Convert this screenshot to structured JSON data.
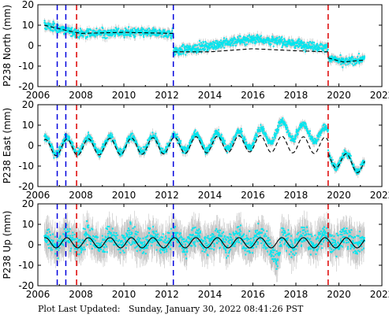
{
  "footer": {
    "label": "Plot Last Updated:",
    "timestamp": "Sunday, January 30, 2022 08:41:26 PST"
  },
  "colors": {
    "data": "#00e5ee",
    "error_bars": "#b4b4b4",
    "model_top": "#000000",
    "model_bottom": "#000000",
    "blue_lines": "#0000dd",
    "red_lines": "#dd0000",
    "axes": "#000000"
  },
  "chart_data": [
    {
      "type": "scatter",
      "ylabel": "P238 North (mm)",
      "xlim": [
        2006,
        2022
      ],
      "ylim": [
        -20,
        20
      ],
      "xticks": [
        2006,
        2008,
        2010,
        2012,
        2014,
        2016,
        2018,
        2020,
        2022
      ],
      "yticks": [
        -20,
        -10,
        0,
        10,
        20
      ],
      "vlines_blue": [
        2006.9,
        2007.3,
        2012.3
      ],
      "vlines_red": [
        2007.8,
        2019.5
      ],
      "data_range": [
        2006.3,
        2021.2
      ],
      "segments": [
        {
          "from": 2006.3,
          "to": 2012.3,
          "trend": [
            [
              2006.3,
              10
            ],
            [
              2007.3,
              7.5
            ],
            [
              2008,
              6
            ],
            [
              2010,
              6.5
            ],
            [
              2012.2,
              6
            ]
          ],
          "scatter": 2.2,
          "error": 1.5,
          "model_dashed": true
        },
        {
          "from": 2012.3,
          "to": 2019.5,
          "trend": [
            [
              2012.3,
              -3
            ],
            [
              2014,
              -3
            ],
            [
              2016,
              -1.5
            ],
            [
              2018,
              -2.5
            ],
            [
              2019.4,
              -3
            ]
          ],
          "data_trend": [
            [
              2012.3,
              -3
            ],
            [
              2014,
              0
            ],
            [
              2016,
              3.5
            ],
            [
              2018,
              1
            ],
            [
              2019.4,
              -1
            ]
          ],
          "scatter": 2.2,
          "error": 1.5,
          "model_dashed": true
        },
        {
          "from": 2019.5,
          "to": 2021.2,
          "trend": [
            [
              2019.5,
              -6
            ],
            [
              2020.2,
              -8
            ],
            [
              2021.2,
              -7
            ]
          ],
          "data_trend": [
            [
              2019.5,
              -6
            ],
            [
              2020.2,
              -8
            ],
            [
              2021.2,
              -6.5
            ]
          ],
          "scatter": 2.0,
          "error": 1.5,
          "model_dashed": true
        }
      ]
    },
    {
      "type": "scatter",
      "ylabel": "P238 East (mm)",
      "xlim": [
        2006,
        2022
      ],
      "ylim": [
        -20,
        20
      ],
      "xticks": [
        2006,
        2008,
        2010,
        2012,
        2014,
        2016,
        2018,
        2020,
        2022
      ],
      "yticks": [
        -20,
        -10,
        0,
        10,
        20
      ],
      "vlines_blue": [
        2006.9,
        2007.3,
        2012.3
      ],
      "vlines_red": [
        2007.8,
        2019.5
      ],
      "data_range": [
        2006.3,
        2021.2
      ],
      "seasonal_amplitude": 4,
      "segments": [
        {
          "from": 2006.3,
          "to": 2019.5,
          "trend": [
            [
              2006.3,
              -1
            ],
            [
              2012,
              0
            ],
            [
              2016,
              1
            ],
            [
              2019.4,
              0
            ]
          ],
          "data_trend": [
            [
              2006.3,
              0
            ],
            [
              2012,
              1
            ],
            [
              2016,
              3
            ],
            [
              2017.5,
              8
            ],
            [
              2019.4,
              5
            ]
          ],
          "scatter": 1.8,
          "error": 1.5,
          "model_dashed": true
        },
        {
          "from": 2019.5,
          "to": 2021.2,
          "trend": [
            [
              2019.5,
              -6
            ],
            [
              2021.2,
              -10
            ]
          ],
          "data_trend": [
            [
              2019.5,
              -6
            ],
            [
              2021.2,
              -9
            ]
          ],
          "scatter": 1.8,
          "error": 1.5,
          "model_dashed": true
        }
      ]
    },
    {
      "type": "scatter",
      "ylabel": "P238 Up (mm)",
      "xlim": [
        2006,
        2022
      ],
      "ylim": [
        -20,
        20
      ],
      "xticks": [
        2006,
        2008,
        2010,
        2012,
        2014,
        2016,
        2018,
        2020,
        2022
      ],
      "yticks": [
        -20,
        -10,
        0,
        10,
        20
      ],
      "vlines_blue": [
        2006.9,
        2007.3,
        2012.3
      ],
      "vlines_red": [
        2007.8,
        2019.5
      ],
      "data_range": [
        2006.3,
        2021.2
      ],
      "seasonal_amplitude": 2.5,
      "segments": [
        {
          "from": 2006.3,
          "to": 2021.2,
          "trend": [
            [
              2006.3,
              1
            ],
            [
              2021.2,
              1
            ]
          ],
          "data_trend": [
            [
              2006.3,
              2
            ],
            [
              2016.8,
              2
            ],
            [
              2017.1,
              -8
            ],
            [
              2017.4,
              2
            ],
            [
              2021.2,
              2
            ]
          ],
          "scatter": 5,
          "error": 6,
          "model_dashed": false
        }
      ]
    }
  ]
}
